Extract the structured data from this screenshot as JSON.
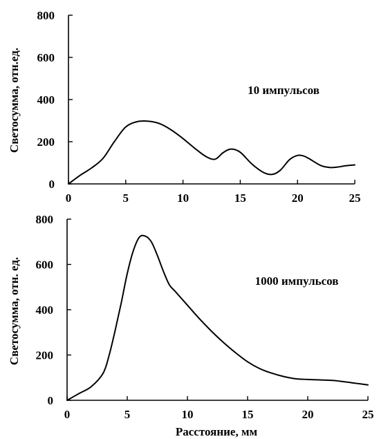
{
  "chart_data": [
    {
      "type": "line",
      "title": "",
      "xlabel": "",
      "ylabel": "Светосумма, отн.ед.",
      "annotation": "10 импульсов",
      "xlim": [
        0,
        25
      ],
      "ylim": [
        0,
        800
      ],
      "xticks": [
        0,
        5,
        10,
        15,
        20,
        25
      ],
      "yticks": [
        0,
        200,
        400,
        600,
        800
      ],
      "grid": false,
      "series": [
        {
          "x": [
            0,
            1,
            2,
            3,
            4,
            5,
            6,
            7,
            8,
            9,
            10,
            11,
            12,
            12.8,
            13.5,
            14.2,
            15,
            16,
            17,
            17.8,
            18.5,
            19.3,
            20,
            20.5,
            21,
            22,
            22.8,
            23.5,
            24.2,
            25
          ],
          "y": [
            0,
            40,
            75,
            120,
            200,
            270,
            295,
            297,
            285,
            255,
            215,
            170,
            130,
            117,
            148,
            165,
            150,
            95,
            55,
            45,
            65,
            115,
            135,
            133,
            120,
            88,
            78,
            80,
            86,
            90
          ]
        }
      ]
    },
    {
      "type": "line",
      "title": "",
      "xlabel": "Расстояние, мм",
      "ylabel": "Светосумма, отн. ед.",
      "annotation": "1000 импульсов",
      "xlim": [
        0,
        25
      ],
      "ylim": [
        0,
        800
      ],
      "xticks": [
        0,
        5,
        10,
        15,
        20,
        25
      ],
      "yticks": [
        0,
        200,
        400,
        600,
        800
      ],
      "grid": false,
      "series": [
        {
          "x": [
            0,
            1,
            2,
            3,
            3.5,
            4,
            4.5,
            5,
            5.5,
            6,
            6.5,
            7,
            7.5,
            8,
            8.5,
            9,
            10,
            11,
            12,
            13,
            14,
            15,
            16,
            17,
            18,
            19,
            20,
            21,
            22,
            23,
            24,
            25
          ],
          "y": [
            0,
            30,
            60,
            120,
            200,
            310,
            430,
            560,
            660,
            720,
            725,
            700,
            640,
            570,
            510,
            480,
            420,
            360,
            305,
            255,
            210,
            170,
            140,
            120,
            105,
            95,
            92,
            90,
            88,
            82,
            75,
            68
          ]
        }
      ]
    }
  ]
}
